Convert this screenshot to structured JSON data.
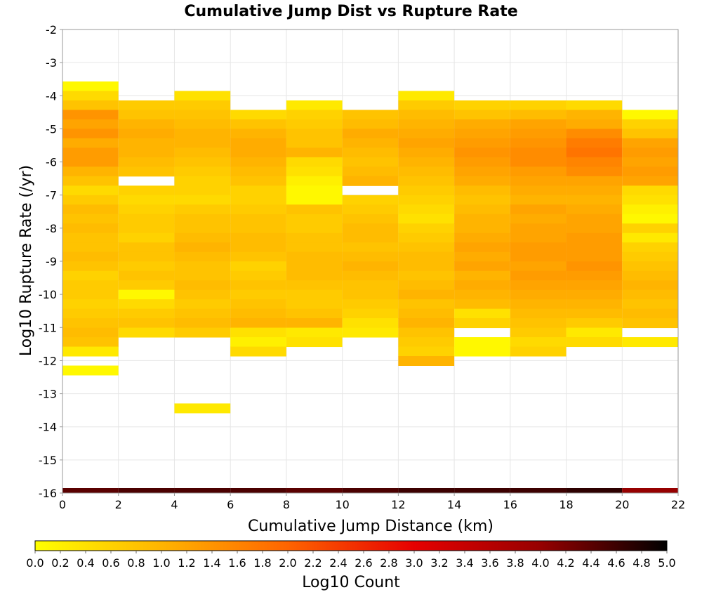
{
  "chart_data": {
    "type": "heatmap",
    "title": "Cumulative Jump Dist vs Rupture Rate",
    "xlabel": "Cumulative Jump Distance (km)",
    "ylabel": "Log10 Rupture Rate (/yr)",
    "xlim": [
      0,
      22
    ],
    "ylim": [
      -16,
      -2
    ],
    "x_ticks": [
      "0",
      "2",
      "4",
      "6",
      "8",
      "10",
      "12",
      "14",
      "16",
      "18",
      "20",
      "22"
    ],
    "y_ticks": [
      "-2",
      "-3",
      "-4",
      "-5",
      "-6",
      "-7",
      "-8",
      "-9",
      "-10",
      "-11",
      "-12",
      "-13",
      "-14",
      "-15",
      "-16"
    ],
    "grid": true,
    "x_bin_width": 2,
    "y_bin_height": 0.286,
    "y_bins_top": -3.57,
    "x_bin_starts": [
      0,
      2,
      4,
      6,
      8,
      10,
      12,
      14,
      16,
      18,
      20
    ],
    "color_scale": {
      "label": "Log10 Count",
      "min": 0.0,
      "max": 5.0,
      "ticks": [
        "0.0",
        "0.2",
        "0.4",
        "0.6",
        "0.8",
        "1.0",
        "1.2",
        "1.4",
        "1.6",
        "1.8",
        "2.0",
        "2.2",
        "2.4",
        "2.6",
        "2.8",
        "3.0",
        "3.2",
        "3.4",
        "3.6",
        "3.8",
        "4.0",
        "4.2",
        "4.4",
        "4.6",
        "4.8",
        "5.0"
      ],
      "colors": [
        "#ffff00",
        "#ffb400",
        "#ff6400",
        "#e60000",
        "#960000",
        "#000000"
      ],
      "stops": [
        0,
        0.2,
        0.4,
        0.6,
        0.8,
        1
      ]
    },
    "columns": [
      {
        "x": 0,
        "values": [
          0.1,
          0.5,
          0.8,
          1.4,
          1.2,
          1.4,
          1.1,
          1.3,
          1.3,
          1.0,
          0.8,
          0.5,
          0.7,
          0.9,
          0.8,
          0.9,
          0.8,
          0.8,
          0.9,
          0.8,
          0.6,
          0.7,
          0.7,
          0.6,
          0.7,
          0.8,
          0.9,
          0.8,
          0.3,
          null,
          0.1
        ]
      },
      {
        "x": 2,
        "values": [
          null,
          null,
          0.7,
          0.8,
          1.0,
          1.1,
          1.0,
          1.0,
          0.9,
          0.8,
          null,
          0.6,
          0.5,
          0.6,
          0.7,
          0.7,
          0.6,
          0.8,
          0.8,
          0.7,
          0.8,
          0.7,
          0.1,
          0.5,
          0.7,
          0.8,
          0.5,
          null,
          null,
          null,
          null
        ]
      },
      {
        "x": 4,
        "values": [
          null,
          0.4,
          0.7,
          0.8,
          0.9,
          1.0,
          1.0,
          0.9,
          0.8,
          0.7,
          0.6,
          0.6,
          0.5,
          0.7,
          0.8,
          0.8,
          0.9,
          1.0,
          0.9,
          0.8,
          0.8,
          0.9,
          0.8,
          0.7,
          0.8,
          0.9,
          0.7,
          null,
          null,
          null,
          null,
          null,
          null,
          null,
          0.3
        ]
      },
      {
        "x": 6,
        "values": [
          null,
          null,
          null,
          0.5,
          0.8,
          1.0,
          1.1,
          1.1,
          1.0,
          0.9,
          0.8,
          0.6,
          0.6,
          0.7,
          0.8,
          0.8,
          0.9,
          0.9,
          0.8,
          0.6,
          0.7,
          0.8,
          0.7,
          0.8,
          0.9,
          1.0,
          0.4,
          0.2,
          0.5
        ]
      },
      {
        "x": 8,
        "values": [
          null,
          null,
          0.3,
          0.6,
          0.7,
          0.8,
          0.8,
          1.0,
          0.5,
          0.4,
          0.2,
          0.1,
          0.1,
          0.8,
          0.7,
          0.7,
          0.8,
          0.8,
          0.9,
          0.9,
          0.9,
          0.8,
          0.7,
          0.7,
          0.8,
          1.0,
          0.3,
          0.4
        ]
      },
      {
        "x": 10,
        "values": [
          null,
          null,
          null,
          0.8,
          0.9,
          1.1,
          1.0,
          0.9,
          0.8,
          0.9,
          1.0,
          null,
          0.6,
          0.7,
          0.8,
          0.9,
          0.9,
          0.8,
          0.9,
          1.0,
          0.9,
          0.8,
          0.8,
          0.7,
          0.6,
          0.4,
          0.3
        ]
      },
      {
        "x": 12,
        "values": [
          null,
          0.3,
          0.7,
          0.9,
          1.0,
          1.1,
          1.2,
          1.1,
          1.0,
          0.9,
          0.8,
          0.7,
          0.6,
          0.5,
          0.4,
          0.6,
          0.7,
          0.8,
          0.9,
          0.9,
          0.8,
          0.9,
          1.0,
          0.8,
          0.9,
          1.0,
          0.8,
          0.7,
          0.6,
          1.0
        ]
      },
      {
        "x": 14,
        "values": [
          null,
          null,
          0.6,
          0.8,
          1.1,
          1.2,
          1.3,
          1.4,
          1.3,
          1.2,
          1.1,
          0.9,
          0.8,
          0.9,
          1.0,
          1.0,
          1.1,
          1.2,
          1.1,
          1.2,
          1.0,
          1.1,
          1.0,
          0.9,
          0.4,
          0.6,
          null,
          0.1,
          0.1
        ]
      },
      {
        "x": 16,
        "values": [
          null,
          null,
          0.6,
          0.9,
          1.2,
          1.3,
          1.4,
          1.5,
          1.5,
          1.3,
          1.2,
          1.1,
          1.0,
          1.2,
          1.1,
          1.2,
          1.2,
          1.3,
          1.3,
          1.2,
          1.3,
          1.2,
          1.1,
          1.0,
          0.9,
          0.8,
          0.7,
          0.5,
          0.6
        ]
      },
      {
        "x": 18,
        "values": [
          null,
          null,
          0.5,
          1.0,
          1.1,
          1.5,
          1.7,
          1.8,
          1.6,
          1.5,
          1.2,
          1.1,
          1.0,
          1.1,
          1.2,
          1.2,
          1.3,
          1.3,
          1.3,
          1.4,
          1.3,
          1.2,
          1.1,
          1.0,
          0.9,
          0.7,
          0.3,
          0.5
        ]
      },
      {
        "x": 20,
        "values": [
          null,
          null,
          null,
          0.1,
          0.6,
          0.8,
          1.2,
          1.3,
          1.2,
          1.3,
          1.2,
          0.5,
          0.4,
          0.2,
          0.1,
          0.6,
          0.3,
          0.6,
          0.7,
          0.8,
          0.9,
          1.0,
          0.9,
          0.8,
          0.9,
          0.8,
          null,
          0.3
        ]
      }
    ],
    "bottom_row": {
      "y": -16,
      "values": [
        4.4,
        4.5,
        4.5,
        4.5,
        4.4,
        4.5,
        4.6,
        4.6,
        4.6,
        4.7,
        4.0
      ]
    }
  }
}
